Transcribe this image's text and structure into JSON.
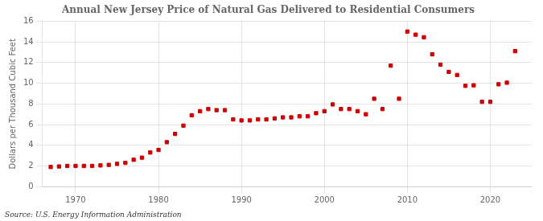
{
  "chart_data": {
    "type": "scatter",
    "title": "Annual New Jersey Price of Natural Gas Delivered to Residential Consumers",
    "ylabel": "Dollars per Thousand Cubic Feet",
    "annotation": "Source: U.S. Energy Information Administration",
    "x": [
      1967,
      1968,
      1969,
      1970,
      1971,
      1972,
      1973,
      1974,
      1975,
      1976,
      1977,
      1978,
      1979,
      1980,
      1981,
      1982,
      1983,
      1984,
      1985,
      1986,
      1987,
      1988,
      1989,
      1990,
      1991,
      1992,
      1993,
      1994,
      1995,
      1996,
      1997,
      1998,
      1999,
      2000,
      2001,
      2002,
      2003,
      2004,
      2005,
      2006,
      2007,
      2008,
      2009,
      2010,
      2011,
      2012,
      2013,
      2014,
      2015,
      2016,
      2017,
      2018,
      2019,
      2020,
      2021,
      2022,
      2023
    ],
    "values": [
      1.9,
      1.95,
      2.0,
      2.0,
      2.0,
      2.0,
      2.05,
      2.1,
      2.2,
      2.3,
      2.6,
      2.8,
      3.3,
      3.55,
      4.3,
      5.1,
      5.9,
      6.9,
      7.3,
      7.5,
      7.4,
      7.4,
      6.5,
      6.4,
      6.4,
      6.5,
      6.5,
      6.6,
      6.7,
      6.7,
      6.8,
      6.8,
      7.1,
      7.3,
      7.95,
      7.5,
      7.5,
      7.3,
      7.0,
      8.5,
      7.5,
      11.7,
      8.5,
      15.0,
      14.7,
      14.45,
      12.8,
      11.8,
      11.1,
      10.8,
      9.75,
      9.8,
      8.2,
      8.2,
      9.9,
      10.05,
      13.1
    ],
    "color": "#cc0000",
    "marker": "square",
    "xlim": [
      1966,
      2025
    ],
    "xticks": [
      1970,
      1980,
      1990,
      2000,
      2010,
      2020
    ],
    "ylim": [
      0,
      16
    ],
    "yticks": [
      0,
      2,
      4,
      6,
      8,
      10,
      12,
      14,
      16
    ],
    "grid": true
  }
}
